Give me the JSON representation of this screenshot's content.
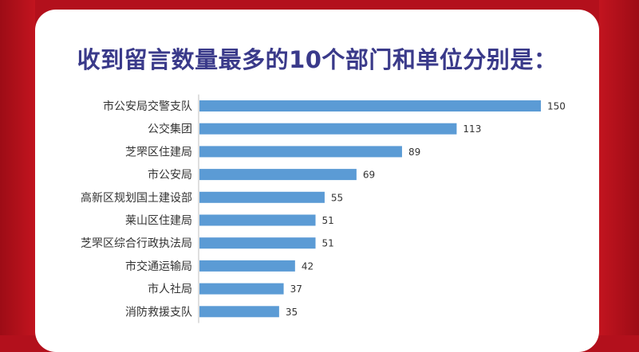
{
  "title": "收到留言数量最多的10个部门和单位分别是：",
  "colors": {
    "background": "#b3101c",
    "card": "#ffffff",
    "title": "#3a3a8a",
    "bar": "#5b9bd5",
    "axis": "#bfbfbf"
  },
  "chart_data": {
    "type": "bar",
    "orientation": "horizontal",
    "categories": [
      "市公安局交警支队",
      "公交集团",
      "芝罘区住建局",
      "市公安局",
      "高新区规划国土建设部",
      "莱山区住建局",
      "芝罘区综合行政执法局",
      "市交通运输局",
      "市人社局",
      "消防救援支队"
    ],
    "values": [
      150,
      113,
      89,
      69,
      55,
      51,
      51,
      42,
      37,
      35
    ],
    "title": "收到留言数量最多的10个部门和单位分别是：",
    "xlabel": "",
    "ylabel": "",
    "xlim": [
      0,
      150
    ],
    "grid": false,
    "data_labels": true
  }
}
